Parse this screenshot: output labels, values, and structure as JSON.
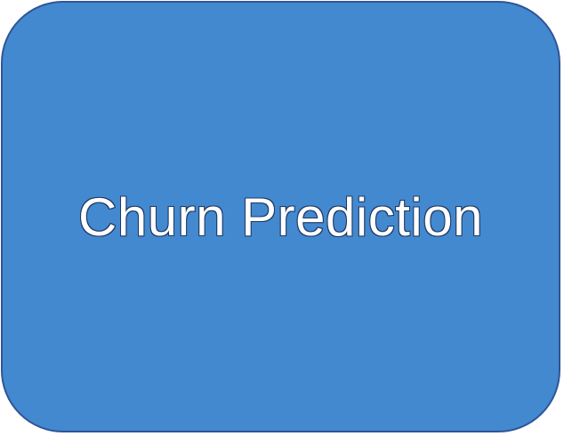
{
  "node": {
    "label": "Churn Prediction"
  },
  "colors": {
    "box_fill": "#4389cf",
    "box_border": "#2f5597",
    "text_fill": "#ffffff",
    "text_outline": "#1f3864"
  }
}
